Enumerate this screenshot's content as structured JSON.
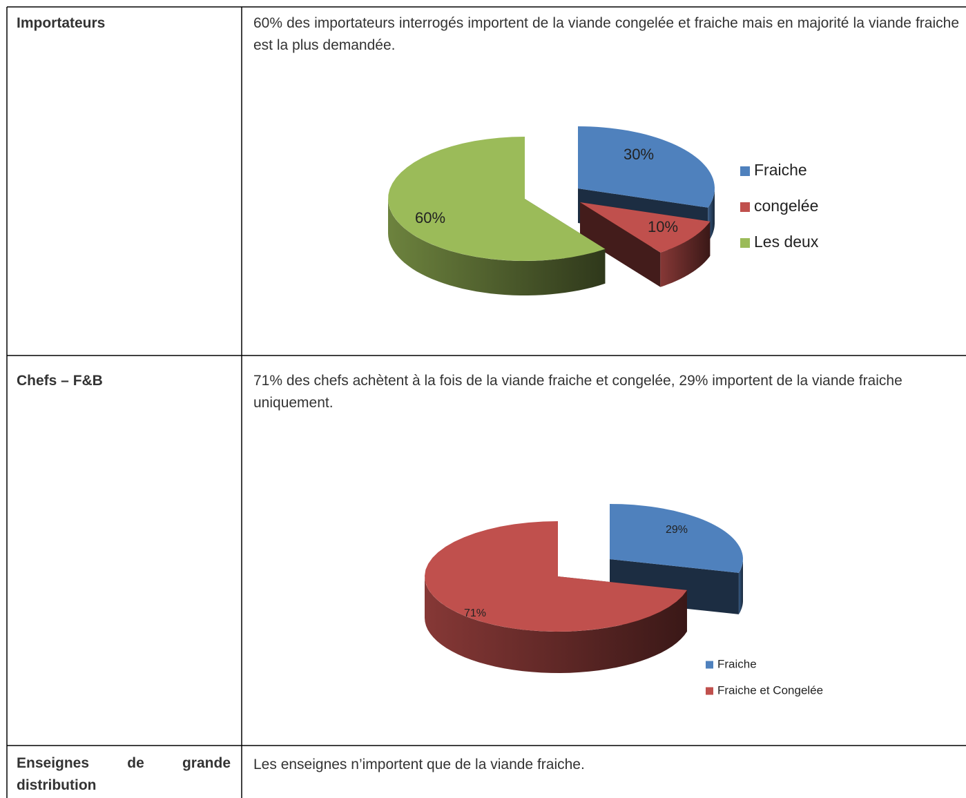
{
  "table": {
    "rows": [
      {
        "label": "Importateurs",
        "text": "60% des importateurs interrogés importent de la viande congelée et fraiche mais en majorité la viande fraiche est la plus demandée.",
        "chart": {
          "type": "pie",
          "categories": [
            "Fraiche",
            "congelée",
            "Les deux"
          ],
          "values": [
            30,
            10,
            60
          ],
          "value_labels": [
            "30%",
            "10%",
            "60%"
          ],
          "colors": [
            "#4f81bd",
            "#c0504d",
            "#9bbb59"
          ],
          "exploded": [
            true,
            true,
            false
          ]
        }
      },
      {
        "label": "Chefs – F&B",
        "text": "71% des chefs achètent à la fois de la viande fraiche et congelée, 29% importent de la viande fraiche uniquement.",
        "chart": {
          "type": "pie",
          "categories": [
            "Fraiche",
            "Fraiche et Congelée"
          ],
          "values": [
            29,
            71
          ],
          "value_labels": [
            "29%",
            "71%"
          ],
          "colors": [
            "#4f81bd",
            "#c0504d"
          ],
          "exploded": [
            true,
            false
          ]
        }
      },
      {
        "label": "Enseignes de grande distribution",
        "text": "Les enseignes n’importent que de la viande fraiche."
      }
    ]
  }
}
